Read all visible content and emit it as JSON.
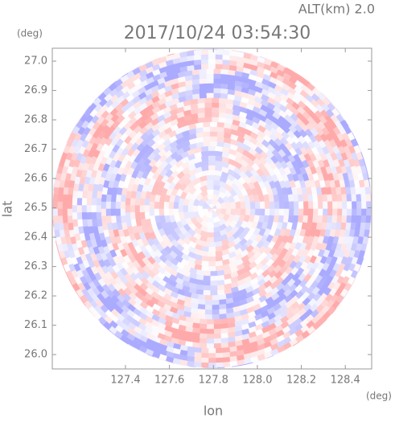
{
  "chart_data": {
    "type": "radar-ppi",
    "title": "2017/10/24 03:54:30",
    "annotation": "ALT(km) 2.0",
    "x_label": "lon",
    "x_unit": "(deg)",
    "y_label": "lat",
    "y_unit": "(deg)",
    "xlim": [
      127.067,
      128.52
    ],
    "ylim": [
      25.951,
      27.044
    ],
    "xticks": [
      127.4,
      127.6,
      127.8,
      {
        "value": 128.0,
        "label": "128.0"
      },
      128.2,
      128.4
    ],
    "yticks": [
      {
        "value": 26.0,
        "label": "26.0"
      },
      26.1,
      26.2,
      26.3,
      26.4,
      26.5,
      26.6,
      26.7,
      26.8,
      26.9,
      {
        "value": 27.0,
        "label": "27.0"
      }
    ]
  }
}
